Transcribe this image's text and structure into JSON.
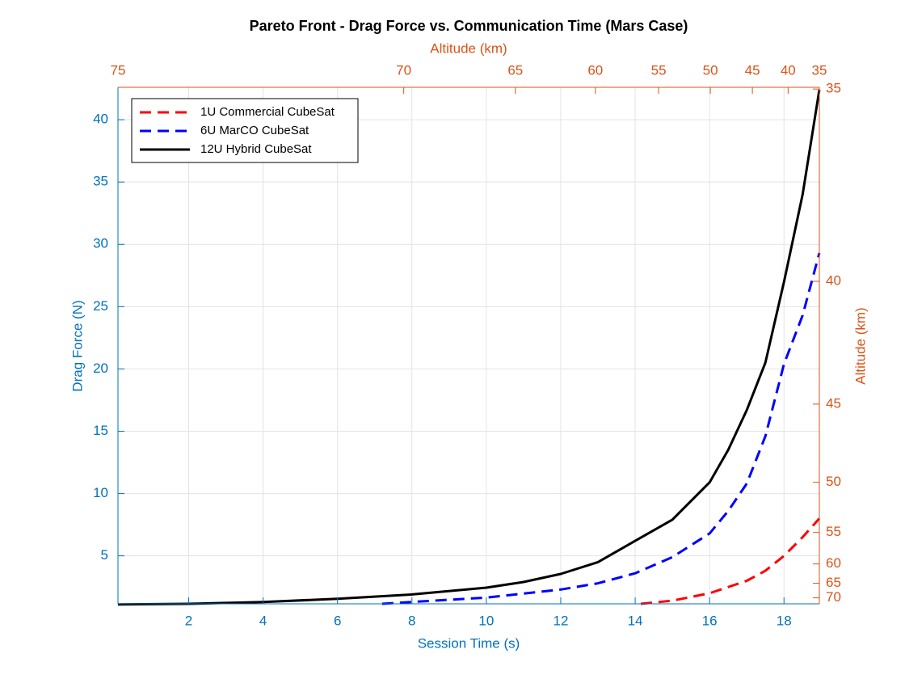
{
  "chart_data": {
    "type": "line",
    "title": "Pareto Front - Drag Force vs. Communication Time (Mars Case)",
    "x_label": "Session Time (s)",
    "y_label": "Drag Force (N)",
    "x2_label": "Altitude (km)",
    "y2_label": "Altitude (km)",
    "xlim": [
      0.1,
      18.95
    ],
    "ylim": [
      1.15,
      42.6
    ],
    "xticks": [
      2,
      4,
      6,
      8,
      10,
      12,
      14,
      16,
      18
    ],
    "yticks": [
      5,
      10,
      15,
      20,
      25,
      30,
      35,
      40
    ],
    "x2ticks": [
      75,
      70,
      65,
      60,
      55,
      50,
      45,
      40,
      35
    ],
    "x2tick_session_time": [
      0.1,
      7.78,
      10.78,
      12.93,
      14.63,
      16.02,
      17.15,
      18.11,
      18.95
    ],
    "y2ticks": [
      35,
      40,
      45,
      50,
      55,
      60,
      65,
      70
    ],
    "y2tick_drag_force": [
      42.46,
      27.03,
      17.18,
      10.9,
      6.88,
      4.35,
      2.8,
      1.63
    ],
    "grid": true,
    "legend": "upper-left",
    "axis_color": "#0072BD",
    "axis2_color": "#D95319",
    "series": [
      {
        "name": "1U Commercial CubeSat",
        "color": "#ff0000",
        "dash": true,
        "x": [
          14.15,
          15,
          16,
          17,
          17.5,
          18,
          18.5,
          18.95
        ],
        "values": [
          1.15,
          1.4,
          2.0,
          3.0,
          3.8,
          5.0,
          6.5,
          8.0
        ]
      },
      {
        "name": "6U MarCO CubeSat",
        "color": "#0000ff",
        "dash": true,
        "x": [
          7.2,
          8,
          10,
          12,
          13,
          14,
          15,
          16,
          16.5,
          17,
          17.5,
          18,
          18.5,
          18.95
        ],
        "values": [
          1.15,
          1.3,
          1.65,
          2.3,
          2.8,
          3.6,
          4.9,
          6.8,
          8.6,
          10.8,
          14.6,
          20.4,
          24.3,
          29.3
        ]
      },
      {
        "name": "12U Hybrid CubeSat",
        "color": "#000000",
        "dash": false,
        "x": [
          0.1,
          2,
          4,
          6,
          8,
          10,
          11,
          12,
          13,
          14,
          15,
          16,
          16.5,
          17,
          17.5,
          18,
          18.5,
          18.95
        ],
        "values": [
          1.1,
          1.15,
          1.3,
          1.55,
          1.9,
          2.45,
          2.9,
          3.55,
          4.5,
          6.2,
          7.9,
          10.9,
          13.5,
          16.7,
          20.5,
          27.0,
          34.0,
          42.4
        ]
      }
    ]
  }
}
